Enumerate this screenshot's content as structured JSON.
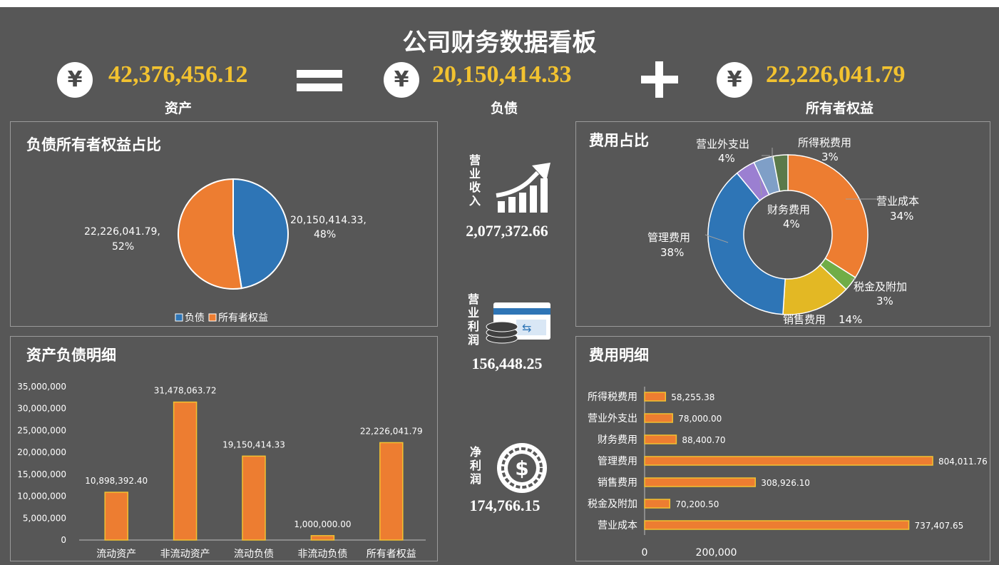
{
  "header": {
    "title": "公司财务数据看板",
    "currency_symbol": "¥",
    "assets": {
      "value": "42,376,456.12",
      "label": "资产"
    },
    "liabilities": {
      "value": "20,150,414.33",
      "label": "负债"
    },
    "equity": {
      "value": "22,226,041.79",
      "label": "所有者权益"
    }
  },
  "kpis": {
    "revenue": {
      "label": "营业收入",
      "value": "2,077,372.66",
      "icon": "rising-bar-chart-icon"
    },
    "operating_profit": {
      "label": "营业利润",
      "value": "156,448.25",
      "icon": "credit-card-coins-icon"
    },
    "net_profit": {
      "label": "净利润",
      "value": "174,766.15",
      "icon": "dollar-coin-icon"
    }
  },
  "colors": {
    "background": "#575757",
    "accent_gold": "#f2c230",
    "blue": "#2e75b6",
    "orange": "#ed7d31",
    "yellow": "#e3b824",
    "green": "#70ad47",
    "purple": "#9b7fd1",
    "light_blue": "#7f9fc7",
    "olive": "#5b7a4a"
  },
  "chart_data": [
    {
      "type": "pie",
      "title": "负债所有者权益占比",
      "categories": [
        "负债",
        "所有者权益"
      ],
      "values": [
        20150414.33,
        22226041.79
      ],
      "data_labels": [
        "20,150,414.33,",
        "48%",
        "22,226,041.79,",
        "52%"
      ],
      "legend": [
        "负债",
        "所有者权益"
      ],
      "legend_position": "bottom"
    },
    {
      "type": "pie",
      "subtype": "donut",
      "title": "费用占比",
      "categories": [
        "营业成本",
        "税金及附加",
        "销售费用",
        "管理费用",
        "财务费用",
        "营业外支出",
        "所得税费用"
      ],
      "percents": [
        34,
        3,
        14,
        38,
        4,
        4,
        3
      ],
      "values": [
        737407.65,
        70200.5,
        308926.1,
        804011.76,
        88400.7,
        78000.0,
        58255.38
      ],
      "labels": [
        {
          "name": "营业成本",
          "pct": "34%"
        },
        {
          "name": "税金及附加",
          "pct": "3%"
        },
        {
          "name": "销售费用",
          "pct": "14%"
        },
        {
          "name": "管理费用",
          "pct": "38%"
        },
        {
          "name": "财务费用",
          "pct": "4%"
        },
        {
          "name": "营业外支出",
          "pct": "4%"
        },
        {
          "name": "所得税费用",
          "pct": "3%"
        }
      ]
    },
    {
      "type": "bar",
      "title": "资产负债明细",
      "categories": [
        "流动资产",
        "非流动资产",
        "流动负债",
        "非流动负债",
        "所有者权益"
      ],
      "values": [
        10898392.4,
        31478063.72,
        19150414.33,
        1000000.0,
        22226041.79
      ],
      "value_labels": [
        "10,898,392.40",
        "31,478,063.72",
        "19,150,414.33",
        "1,000,000.00",
        "22,226,041.79"
      ],
      "ylim": [
        0,
        35000000
      ],
      "yticks": [
        "0",
        "5,000,000",
        "10,000,000",
        "15,000,000",
        "20,000,000",
        "25,000,000",
        "30,000,000",
        "35,000,000"
      ],
      "grid": false
    },
    {
      "type": "bar",
      "orientation": "horizontal",
      "title": "费用明细",
      "categories": [
        "所得税费用",
        "营业外支出",
        "财务费用",
        "管理费用",
        "销售费用",
        "税金及附加",
        "营业成本"
      ],
      "values": [
        58255.38,
        78000.0,
        88400.7,
        804011.76,
        308926.1,
        70200.5,
        737407.65
      ],
      "value_labels": [
        "58,255.38",
        "78,000.00",
        "88,400.70",
        "804,011.76",
        "308,926.10",
        "70,200.50",
        "737,407.65"
      ],
      "xticks": [
        "0",
        "200,000"
      ],
      "grid": false
    }
  ]
}
